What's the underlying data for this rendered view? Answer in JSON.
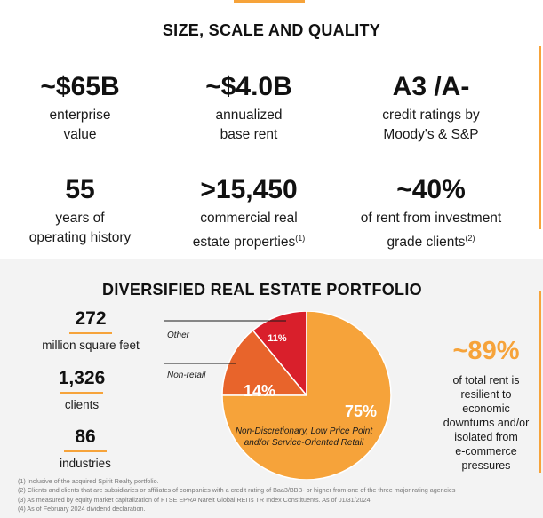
{
  "size_section": {
    "title": "SIZE, SCALE AND QUALITY",
    "stats": [
      {
        "value": "~$65B",
        "line1": "enterprise",
        "line2": "value"
      },
      {
        "value": "~$4.0B",
        "line1": "annualized",
        "line2": "base rent"
      },
      {
        "value": "A3 /A-",
        "line1": "credit ratings by",
        "line2": "Moody's & S&P"
      },
      {
        "value": "55",
        "line1": "years of",
        "line2": "operating history"
      },
      {
        "value": ">15,450",
        "line1": "commercial real",
        "line2": "estate properties",
        "note": "(1)"
      },
      {
        "value": "~40%",
        "line1": "of rent from investment",
        "line2": "grade clients",
        "note": "(2)"
      }
    ]
  },
  "portfolio_section": {
    "title": "DIVERSIFIED REAL ESTATE PORTFOLIO",
    "stats": [
      {
        "value": "272",
        "label": "million square feet"
      },
      {
        "value": "1,326",
        "label": "clients"
      },
      {
        "value": "86",
        "label": "industries"
      }
    ],
    "callout": {
      "value": "~89%",
      "lines": [
        "of total rent is",
        "resilient to",
        "economic",
        "downturns and/or",
        "isolated from",
        "e-commerce",
        "pressures"
      ]
    }
  },
  "chart_data": {
    "type": "pie",
    "slices": [
      {
        "label": "Non-Discretionary, Low Price Point and/or Service-Oriented Retail",
        "label_line1": "Non-Discretionary, Low Price Point",
        "label_line2": "and/or Service-Oriented Retail",
        "value": 75,
        "display": "75%",
        "color": "#f6a33a"
      },
      {
        "label": "Non-retail",
        "value": 14,
        "display": "14%",
        "color": "#e8642b"
      },
      {
        "label": "Other",
        "value": 11,
        "display": "11%",
        "color": "#d91f2b"
      }
    ]
  },
  "footnotes": [
    "(1) Inclusive of the acquired Spirit Realty portfolio.",
    "(2) Clients and clients that are subsidiaries or affiliates of companies with a credit rating of Baa3/BBB- or higher from one of the three major rating agencies",
    "(3) As measured by equity market capitalization of FTSE EPRA Nareit Global REITs TR Index Constituents. As of 01/31/2024.",
    "(4) As of February 2024 dividend declaration."
  ],
  "colors": {
    "accent": "#f6a33a",
    "orange_dark": "#e8642b",
    "red": "#d91f2b",
    "panel_bg": "#f3f3f3"
  }
}
